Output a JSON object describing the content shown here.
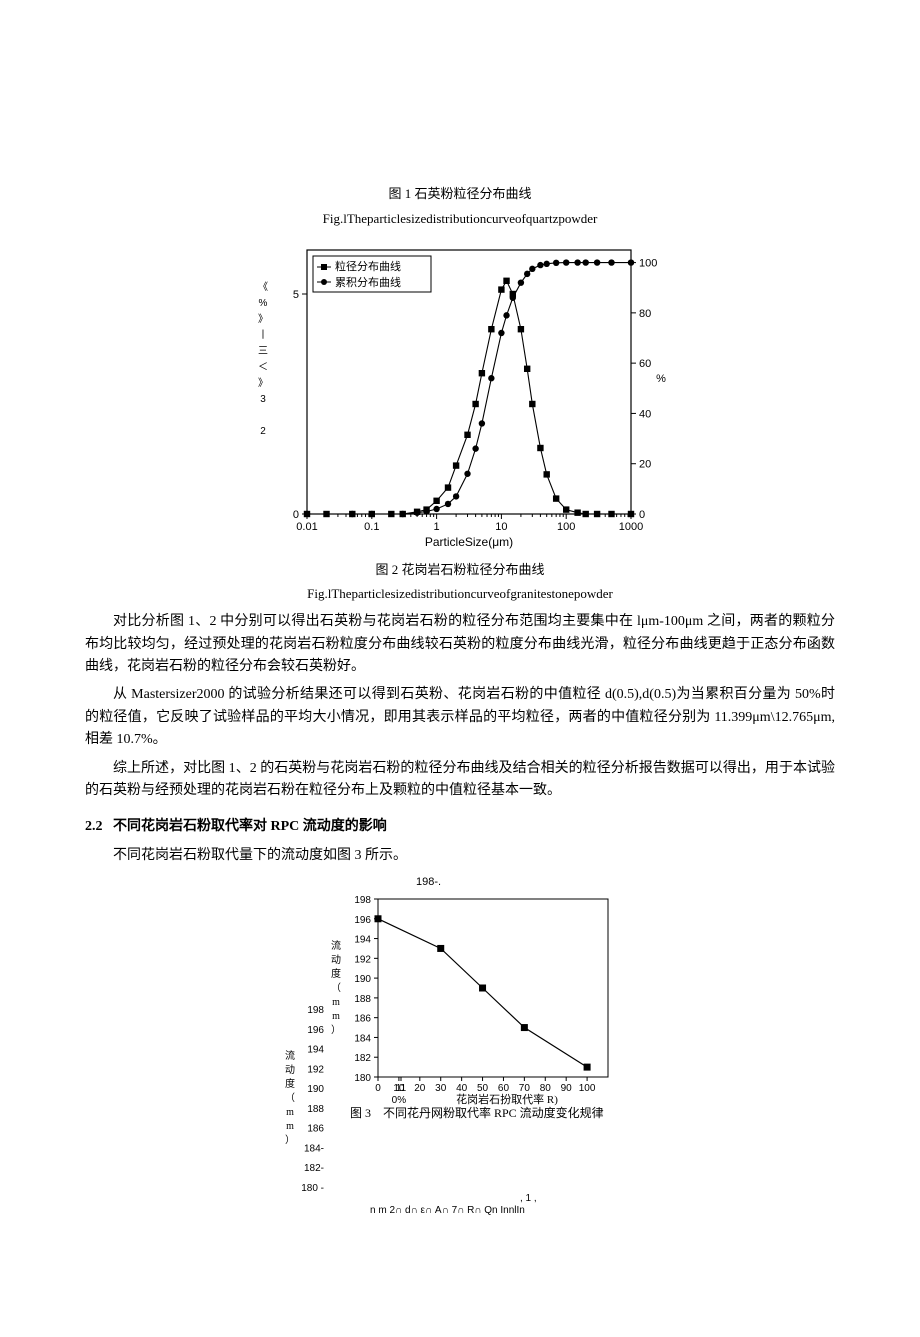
{
  "fig1": {
    "caption_zh": "图 1 石英粉粒径分布曲线",
    "caption_en": "Fig.lTheparticlesizedistributioncurveofquartzpowder"
  },
  "fig2": {
    "caption_zh": "图 2 花岗岩石粉粒径分布曲线",
    "caption_en": "Fig.lTheparticlesizedistributioncurveofgranitestonepowder",
    "legend1": "粒径分布曲线",
    "legend2": "累积分布曲线",
    "xlabel": "ParticleSize(μm)",
    "yleft_label": "《%》丨三＜》3 2",
    "yright_label": "%",
    "xticks": [
      "0.01",
      "0.1",
      "1",
      "10",
      "100",
      "1000"
    ],
    "yleft_ticks": [
      "0",
      "",
      "",
      "",
      "",
      "5"
    ],
    "yright_ticks": [
      "0",
      "20",
      "40",
      "60",
      "80",
      "100"
    ],
    "dist_series": {
      "x": [
        0.01,
        0.02,
        0.05,
        0.1,
        0.2,
        0.3,
        0.5,
        0.7,
        1,
        1.5,
        2,
        3,
        4,
        5,
        7,
        10,
        12,
        15,
        20,
        25,
        30,
        40,
        50,
        70,
        100,
        150,
        200,
        300,
        500,
        1000
      ],
      "y": [
        0,
        0,
        0,
        0,
        0,
        0,
        0.05,
        0.1,
        0.3,
        0.6,
        1.1,
        1.8,
        2.5,
        3.2,
        4.2,
        5.1,
        5.3,
        5.0,
        4.2,
        3.3,
        2.5,
        1.5,
        0.9,
        0.35,
        0.1,
        0.03,
        0,
        0,
        0,
        0
      ]
    },
    "cum_series": {
      "x": [
        0.01,
        0.05,
        0.1,
        0.3,
        0.5,
        0.7,
        1,
        1.5,
        2,
        3,
        4,
        5,
        7,
        10,
        12,
        15,
        20,
        25,
        30,
        40,
        50,
        70,
        100,
        150,
        200,
        300,
        500,
        1000
      ],
      "y": [
        0,
        0,
        0,
        0,
        0.5,
        1,
        2,
        4,
        7,
        16,
        26,
        36,
        54,
        72,
        79,
        86,
        92,
        95.5,
        97.5,
        99,
        99.5,
        99.9,
        100,
        100,
        100,
        100,
        100,
        100
      ]
    },
    "colors": {
      "line": "#000000",
      "marker_fill": "#000000",
      "bg": "#ffffff",
      "grid": "#000000"
    },
    "xlim": [
      0.01,
      1000
    ],
    "ylim_left": [
      0,
      6
    ],
    "ylim_right": [
      0,
      105
    ],
    "marker_size": 3.2,
    "line_width": 1.1
  },
  "body": {
    "p1": "对比分析图 1、2 中分别可以得出石英粉与花岗岩石粉的粒径分布范围均主要集中在 lμm-100μm 之间，两者的颗粒分布均比较均匀，经过预处理的花岗岩石粉粒度分布曲线较石英粉的粒度分布曲线光滑，粒径分布曲线更趋于正态分布函数曲线，花岗岩石粉的粒径分布会较石英粉好。",
    "p2": "从 Mastersizer2000 的试验分析结果还可以得到石英粉、花岗岩石粉的中值粒径 d(0.5),d(0.5)为当累积百分量为 50%时的粒径值，它反映了试验样品的平均大小情况，即用其表示样品的平均粒径，两者的中值粒径分别为 11.399μm\\12.765μm,相差 10.7%。",
    "p3": "综上所述，对比图 1、2 的石英粉与花岗岩石粉的粒径分布曲线及结合相关的粒径分析报告数据可以得出，用于本试验的石英粉与经预处理的花岗岩石粉在粒径分布上及颗粒的中值粒径基本一致。"
  },
  "section": {
    "num": "2.2",
    "title": "不同花岗岩石粉取代率对 RPC 流动度的影响",
    "intro": "不同花岗岩石粉取代量下的流动度如图 3 所示。"
  },
  "fig3": {
    "top_label": "198-.",
    "ylabel": "流动度（mm）",
    "xlabel": "花岗岩石扮取代率 R)",
    "caption": "图 3 不同花丹网粉取代率 RPC 流动度变化规律",
    "yticks": [
      "180",
      "182",
      "184",
      "186",
      "188",
      "190",
      "192",
      "194",
      "196",
      "198"
    ],
    "xticks": [
      "0",
      "10",
      "20",
      "30",
      "40",
      "50",
      "60",
      "70",
      "80",
      "90",
      "100",
      "11"
    ],
    "xtick_sublabel": "0%",
    "series": {
      "x": [
        0,
        30,
        50,
        70,
        100
      ],
      "y": [
        196,
        193,
        189,
        185,
        181
      ]
    },
    "ylim": [
      180,
      198
    ],
    "xlim": [
      0,
      110
    ],
    "colors": {
      "line": "#000000",
      "marker": "#000000",
      "bg": "#ffffff"
    },
    "marker_size": 3.5,
    "line_width": 1.2,
    "ghost": {
      "yticks": [
        "180 -",
        "182-",
        "184-",
        "186",
        "188",
        "190",
        "192",
        "194",
        "196",
        "198"
      ],
      "bottom_line": "n m 2∩ d∩ ε∩ A∩ 7∩ R∩ Qn InnlIn",
      "mid_label": ", 1 ,"
    }
  }
}
